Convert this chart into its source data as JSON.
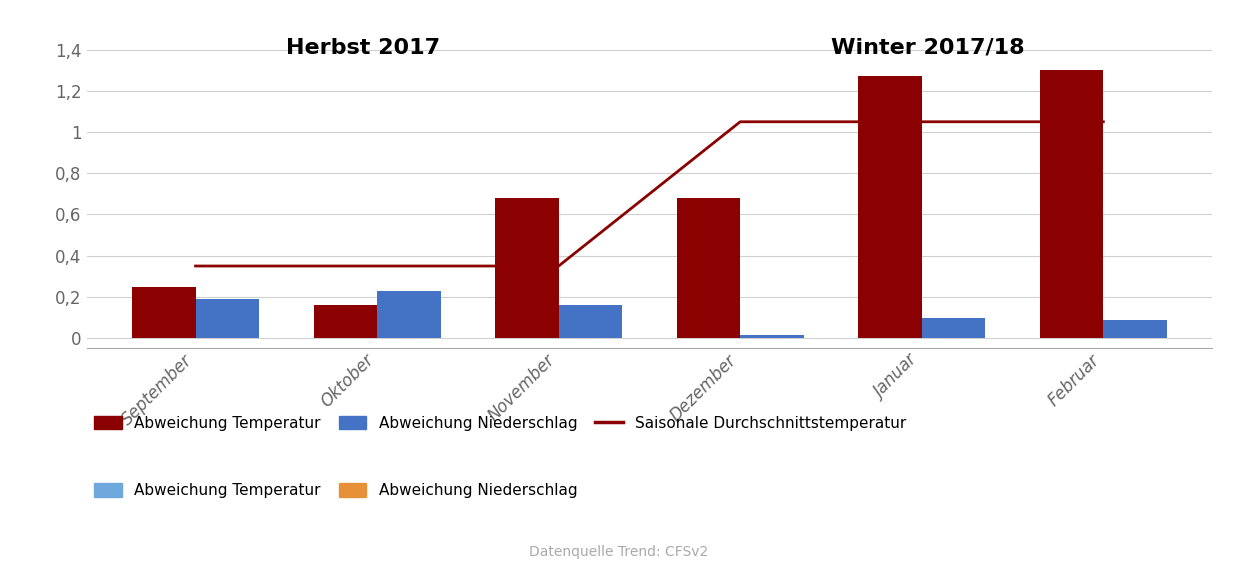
{
  "categories": [
    "September",
    "Oktober",
    "November",
    "Dezember",
    "Januar",
    "Februar"
  ],
  "temp_abw": [
    0.25,
    0.16,
    0.68,
    0.68,
    1.27,
    1.3
  ],
  "niederschlag_abw": [
    0.19,
    0.23,
    0.16,
    0.015,
    0.1,
    0.09
  ],
  "saison_linie": [
    0.35,
    0.35,
    0.35,
    1.05,
    1.05,
    1.05
  ],
  "bar_color_temp": "#8B0000",
  "bar_color_niederschlag": "#4472C4",
  "line_color": "#8B0000",
  "label_herbst": "Herbst 2017",
  "label_winter": "Winter 2017/18",
  "ylim": [
    -0.05,
    1.45
  ],
  "yticks": [
    0.0,
    0.2,
    0.4,
    0.6,
    0.8,
    1.0,
    1.2,
    1.4
  ],
  "ytick_labels": [
    "0",
    "0,2",
    "0,4",
    "0,6",
    "0,8",
    "1",
    "1,2",
    "1,4"
  ],
  "legend_row1": [
    "Abweichung Temperatur",
    "Abweichung Niederschlag",
    "Saisonale Durchschnittstemperatur"
  ],
  "legend_row2": [
    "Abweichung Temperatur",
    "Abweichung Niederschlag"
  ],
  "legend_color_temp2": "#6fa8dc",
  "legend_color_niederschlag2": "#e69138",
  "source_text": "Datenquelle Trend: CFSv2",
  "bar_width": 0.35
}
